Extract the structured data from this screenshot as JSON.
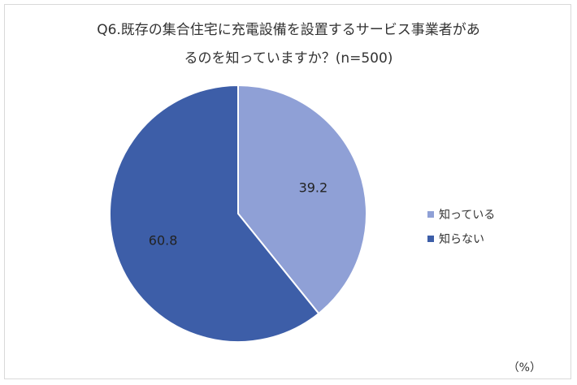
{
  "chart_data": {
    "type": "pie",
    "title_lines": [
      "Q6.既存の集合住宅に充電設備を設置するサービス事業者があ",
      "るのを知っていますか？(n=500)"
    ],
    "unit": "（%）",
    "slices": [
      {
        "label": "知っている",
        "value": 39.2,
        "value_label": "39.2",
        "color": "#8fa0d6"
      },
      {
        "label": "知らない",
        "value": 60.8,
        "value_label": "60.8",
        "color": "#3d5ea8"
      }
    ],
    "start_angle": "12 o'clock",
    "direction": "clockwise",
    "legend_position": "right"
  }
}
